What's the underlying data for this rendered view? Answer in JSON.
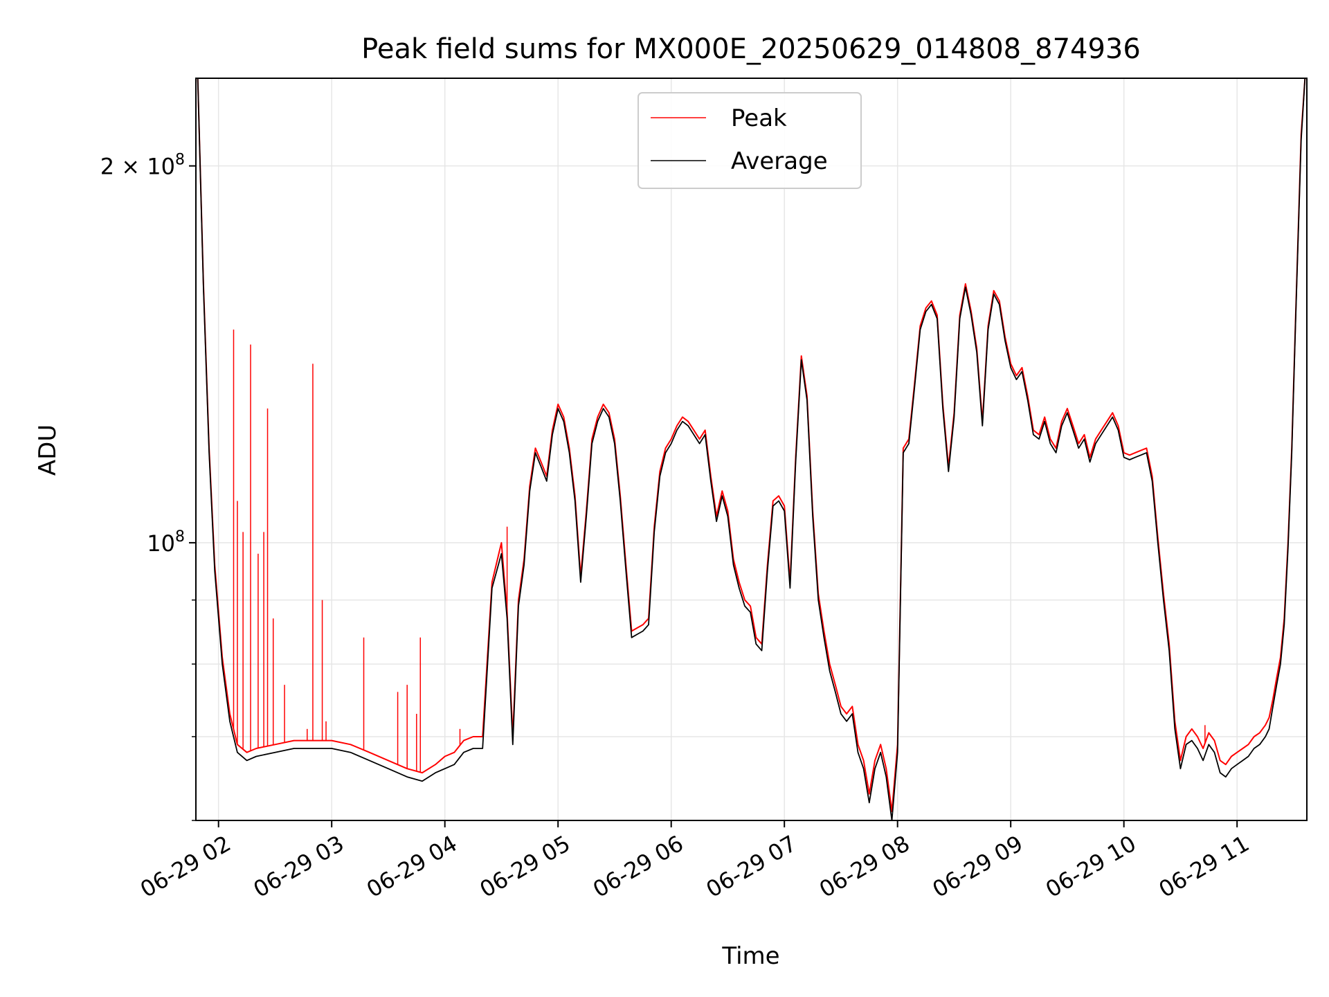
{
  "chart_data": {
    "type": "line",
    "title": "Peak field sums for MX000E_20250629_014808_874936",
    "xlabel": "Time",
    "ylabel": "ADU",
    "x_tick_labels": [
      "06-29 02",
      "06-29 03",
      "06-29 04",
      "06-29 05",
      "06-29 06",
      "06-29 07",
      "06-29 08",
      "06-29 09",
      "06-29 10",
      "06-29 11"
    ],
    "x_ticks": [
      "2025-06-29T02:00",
      "2025-06-29T03:00",
      "2025-06-29T04:00",
      "2025-06-29T05:00",
      "2025-06-29T06:00",
      "2025-06-29T07:00",
      "2025-06-29T08:00",
      "2025-06-29T09:00",
      "2025-06-29T10:00",
      "2025-06-29T11:00"
    ],
    "y_tick_labels": [
      {
        "value": 200000000,
        "base": "2 × 10",
        "exp": "8"
      },
      {
        "value": 100000000,
        "base": "10",
        "exp": "8"
      }
    ],
    "y_scale": "log",
    "xlim": [
      "2025-06-29T01:48",
      "2025-06-29T11:37"
    ],
    "ylim": [
      60000000,
      235000000
    ],
    "grid": true,
    "legend": {
      "position": "top-center",
      "entries": [
        "Peak",
        "Average"
      ]
    },
    "colors": {
      "Peak": "#ff0000",
      "Average": "#000000"
    },
    "x": [
      "2025-06-29T01:49",
      "2025-06-29T01:52",
      "2025-06-29T01:55",
      "2025-06-29T01:58",
      "2025-06-29T02:02",
      "2025-06-29T02:06",
      "2025-06-29T02:10",
      "2025-06-29T02:15",
      "2025-06-29T02:20",
      "2025-06-29T02:30",
      "2025-06-29T02:40",
      "2025-06-29T02:50",
      "2025-06-29T03:00",
      "2025-06-29T03:10",
      "2025-06-29T03:20",
      "2025-06-29T03:30",
      "2025-06-29T03:40",
      "2025-06-29T03:48",
      "2025-06-29T03:55",
      "2025-06-29T04:00",
      "2025-06-29T04:05",
      "2025-06-29T04:10",
      "2025-06-29T04:15",
      "2025-06-29T04:20",
      "2025-06-29T04:25",
      "2025-06-29T04:30",
      "2025-06-29T04:33",
      "2025-06-29T04:36",
      "2025-06-29T04:39",
      "2025-06-29T04:42",
      "2025-06-29T04:45",
      "2025-06-29T04:48",
      "2025-06-29T04:51",
      "2025-06-29T04:54",
      "2025-06-29T04:57",
      "2025-06-29T05:00",
      "2025-06-29T05:03",
      "2025-06-29T05:06",
      "2025-06-29T05:09",
      "2025-06-29T05:12",
      "2025-06-29T05:15",
      "2025-06-29T05:18",
      "2025-06-29T05:21",
      "2025-06-29T05:24",
      "2025-06-29T05:27",
      "2025-06-29T05:30",
      "2025-06-29T05:33",
      "2025-06-29T05:36",
      "2025-06-29T05:39",
      "2025-06-29T05:42",
      "2025-06-29T05:45",
      "2025-06-29T05:48",
      "2025-06-29T05:51",
      "2025-06-29T05:54",
      "2025-06-29T05:57",
      "2025-06-29T06:00",
      "2025-06-29T06:03",
      "2025-06-29T06:06",
      "2025-06-29T06:09",
      "2025-06-29T06:12",
      "2025-06-29T06:15",
      "2025-06-29T06:18",
      "2025-06-29T06:21",
      "2025-06-29T06:24",
      "2025-06-29T06:27",
      "2025-06-29T06:30",
      "2025-06-29T06:33",
      "2025-06-29T06:36",
      "2025-06-29T06:39",
      "2025-06-29T06:42",
      "2025-06-29T06:45",
      "2025-06-29T06:48",
      "2025-06-29T06:51",
      "2025-06-29T06:54",
      "2025-06-29T06:57",
      "2025-06-29T07:00",
      "2025-06-29T07:03",
      "2025-06-29T07:06",
      "2025-06-29T07:09",
      "2025-06-29T07:12",
      "2025-06-29T07:15",
      "2025-06-29T07:18",
      "2025-06-29T07:21",
      "2025-06-29T07:24",
      "2025-06-29T07:27",
      "2025-06-29T07:30",
      "2025-06-29T07:33",
      "2025-06-29T07:36",
      "2025-06-29T07:39",
      "2025-06-29T07:42",
      "2025-06-29T07:45",
      "2025-06-29T07:48",
      "2025-06-29T07:51",
      "2025-06-29T07:54",
      "2025-06-29T07:57",
      "2025-06-29T08:00",
      "2025-06-29T08:03",
      "2025-06-29T08:06",
      "2025-06-29T08:09",
      "2025-06-29T08:12",
      "2025-06-29T08:15",
      "2025-06-29T08:18",
      "2025-06-29T08:21",
      "2025-06-29T08:24",
      "2025-06-29T08:27",
      "2025-06-29T08:30",
      "2025-06-29T08:33",
      "2025-06-29T08:36",
      "2025-06-29T08:39",
      "2025-06-29T08:42",
      "2025-06-29T08:45",
      "2025-06-29T08:48",
      "2025-06-29T08:51",
      "2025-06-29T08:54",
      "2025-06-29T08:57",
      "2025-06-29T09:00",
      "2025-06-29T09:03",
      "2025-06-29T09:06",
      "2025-06-29T09:09",
      "2025-06-29T09:12",
      "2025-06-29T09:15",
      "2025-06-29T09:18",
      "2025-06-29T09:21",
      "2025-06-29T09:24",
      "2025-06-29T09:27",
      "2025-06-29T09:30",
      "2025-06-29T09:33",
      "2025-06-29T09:36",
      "2025-06-29T09:39",
      "2025-06-29T09:42",
      "2025-06-29T09:45",
      "2025-06-29T09:48",
      "2025-06-29T09:51",
      "2025-06-29T09:54",
      "2025-06-29T09:57",
      "2025-06-29T10:00",
      "2025-06-29T10:03",
      "2025-06-29T10:06",
      "2025-06-29T10:09",
      "2025-06-29T10:12",
      "2025-06-29T10:15",
      "2025-06-29T10:18",
      "2025-06-29T10:21",
      "2025-06-29T10:24",
      "2025-06-29T10:27",
      "2025-06-29T10:30",
      "2025-06-29T10:33",
      "2025-06-29T10:36",
      "2025-06-29T10:39",
      "2025-06-29T10:42",
      "2025-06-29T10:45",
      "2025-06-29T10:48",
      "2025-06-29T10:51",
      "2025-06-29T10:54",
      "2025-06-29T10:57",
      "2025-06-29T11:00",
      "2025-06-29T11:03",
      "2025-06-29T11:06",
      "2025-06-29T11:09",
      "2025-06-29T11:12",
      "2025-06-29T11:15",
      "2025-06-29T11:17",
      "2025-06-29T11:19",
      "2025-06-29T11:21",
      "2025-06-29T11:23",
      "2025-06-29T11:25",
      "2025-06-29T11:27",
      "2025-06-29T11:29",
      "2025-06-29T11:31",
      "2025-06-29T11:34",
      "2025-06-29T11:36"
    ],
    "series": [
      {
        "name": "Average",
        "values": [
          235000000,
          160000000,
          118000000,
          95000000,
          80000000,
          72000000,
          68000000,
          67000000,
          67500000,
          68000000,
          68500000,
          68500000,
          68500000,
          68000000,
          67000000,
          66000000,
          65000000,
          64500000,
          65500000,
          66000000,
          66500000,
          68000000,
          68500000,
          68500000,
          92000000,
          98000000,
          87000000,
          69000000,
          89000000,
          96000000,
          110000000,
          118000000,
          115000000,
          112000000,
          122000000,
          128000000,
          125000000,
          118000000,
          108000000,
          93000000,
          105000000,
          120000000,
          125000000,
          128000000,
          126000000,
          120000000,
          108000000,
          95000000,
          84000000,
          84500000,
          85000000,
          86000000,
          102000000,
          113000000,
          118000000,
          120000000,
          123000000,
          125000000,
          124000000,
          122000000,
          120000000,
          122000000,
          112000000,
          104000000,
          109000000,
          105000000,
          96000000,
          92000000,
          89000000,
          88000000,
          83000000,
          82000000,
          95000000,
          107000000,
          108000000,
          106000000,
          92000000,
          116000000,
          140000000,
          130000000,
          105000000,
          90000000,
          84000000,
          79000000,
          76000000,
          73000000,
          72000000,
          73000000,
          68000000,
          66000000,
          62000000,
          66000000,
          68000000,
          65000000,
          60000000,
          68000000,
          118000000,
          120000000,
          133000000,
          148000000,
          153000000,
          155000000,
          151000000,
          128000000,
          114000000,
          126000000,
          151000000,
          160000000,
          152000000,
          142000000,
          124000000,
          148000000,
          158000000,
          155000000,
          145000000,
          138000000,
          135000000,
          137000000,
          130000000,
          122000000,
          121000000,
          125000000,
          120000000,
          118000000,
          124000000,
          127000000,
          123000000,
          119000000,
          121000000,
          116000000,
          120000000,
          122000000,
          124000000,
          126000000,
          123000000,
          117000000,
          116500000,
          117000000,
          117500000,
          118000000,
          112000000,
          100000000,
          90000000,
          82000000,
          71000000,
          66000000,
          69000000,
          69500000,
          68500000,
          67000000,
          69000000,
          68000000,
          65500000,
          65000000,
          66000000,
          66500000,
          67000000,
          67500000,
          68500000,
          69000000,
          70000000,
          71000000,
          74000000,
          77000000,
          80000000,
          86000000,
          99000000,
          118000000,
          150000000,
          210000000,
          235000000
        ]
      },
      {
        "name": "Peak",
        "values": [
          235000000,
          161000000,
          119000000,
          96000000,
          81000000,
          73000000,
          69000000,
          68000000,
          68500000,
          69000000,
          69500000,
          69500000,
          69500000,
          69000000,
          68000000,
          67000000,
          66000000,
          65500000,
          66500000,
          67500000,
          68000000,
          69500000,
          70000000,
          70000000,
          93000000,
          100000000,
          88000000,
          70000000,
          90000000,
          97000000,
          111000000,
          119000000,
          116000000,
          113000000,
          123000000,
          129000000,
          126000000,
          119000000,
          109000000,
          94000000,
          106000000,
          121000000,
          126000000,
          129000000,
          127000000,
          121000000,
          109000000,
          96000000,
          85000000,
          85500000,
          86000000,
          87000000,
          103000000,
          114000000,
          119000000,
          121000000,
          124000000,
          126000000,
          125000000,
          123000000,
          121000000,
          123000000,
          113000000,
          105000000,
          110000000,
          106000000,
          97000000,
          93000000,
          90000000,
          89000000,
          84000000,
          83000000,
          96000000,
          108000000,
          109000000,
          107000000,
          93000000,
          117000000,
          141000000,
          131000000,
          106000000,
          91000000,
          85000000,
          80000000,
          77000000,
          74000000,
          73000000,
          74000000,
          69000000,
          67000000,
          63000000,
          67000000,
          69000000,
          66000000,
          61000000,
          69000000,
          119000000,
          121000000,
          134000000,
          149000000,
          154000000,
          156000000,
          152000000,
          129000000,
          115000000,
          127000000,
          152000000,
          161000000,
          153000000,
          143000000,
          125000000,
          149000000,
          159000000,
          156000000,
          146000000,
          139000000,
          136000000,
          138000000,
          131000000,
          123000000,
          122000000,
          126000000,
          121000000,
          119000000,
          125000000,
          128000000,
          124000000,
          120000000,
          122000000,
          117000000,
          121000000,
          123000000,
          125000000,
          127000000,
          124000000,
          118000000,
          117500000,
          118000000,
          118500000,
          119000000,
          113000000,
          101000000,
          91000000,
          83000000,
          72000000,
          67000000,
          70000000,
          71000000,
          70000000,
          68500000,
          70500000,
          69500000,
          67000000,
          66500000,
          67500000,
          68000000,
          68500000,
          69000000,
          70000000,
          70500000,
          71500000,
          72500000,
          75000000,
          78000000,
          81000000,
          87000000,
          100000000,
          119000000,
          151000000,
          212000000,
          235000000
        ],
        "spikes": [
          {
            "x": "2025-06-29T02:08",
            "value": 148000000
          },
          {
            "x": "2025-06-29T02:10",
            "value": 108000000
          },
          {
            "x": "2025-06-29T02:13",
            "value": 102000000
          },
          {
            "x": "2025-06-29T02:17",
            "value": 144000000
          },
          {
            "x": "2025-06-29T02:21",
            "value": 98000000
          },
          {
            "x": "2025-06-29T02:24",
            "value": 102000000
          },
          {
            "x": "2025-06-29T02:26",
            "value": 128000000
          },
          {
            "x": "2025-06-29T02:29",
            "value": 87000000
          },
          {
            "x": "2025-06-29T02:35",
            "value": 77000000
          },
          {
            "x": "2025-06-29T02:47",
            "value": 71000000
          },
          {
            "x": "2025-06-29T02:50",
            "value": 139000000
          },
          {
            "x": "2025-06-29T02:55",
            "value": 90000000
          },
          {
            "x": "2025-06-29T02:57",
            "value": 72000000
          },
          {
            "x": "2025-06-29T03:17",
            "value": 84000000
          },
          {
            "x": "2025-06-29T03:35",
            "value": 76000000
          },
          {
            "x": "2025-06-29T03:40",
            "value": 77000000
          },
          {
            "x": "2025-06-29T03:45",
            "value": 73000000
          },
          {
            "x": "2025-06-29T03:47",
            "value": 84000000
          },
          {
            "x": "2025-06-29T04:08",
            "value": 71000000
          },
          {
            "x": "2025-06-29T04:33",
            "value": 103000000
          },
          {
            "x": "2025-06-29T10:43",
            "value": 71500000
          }
        ]
      }
    ]
  }
}
